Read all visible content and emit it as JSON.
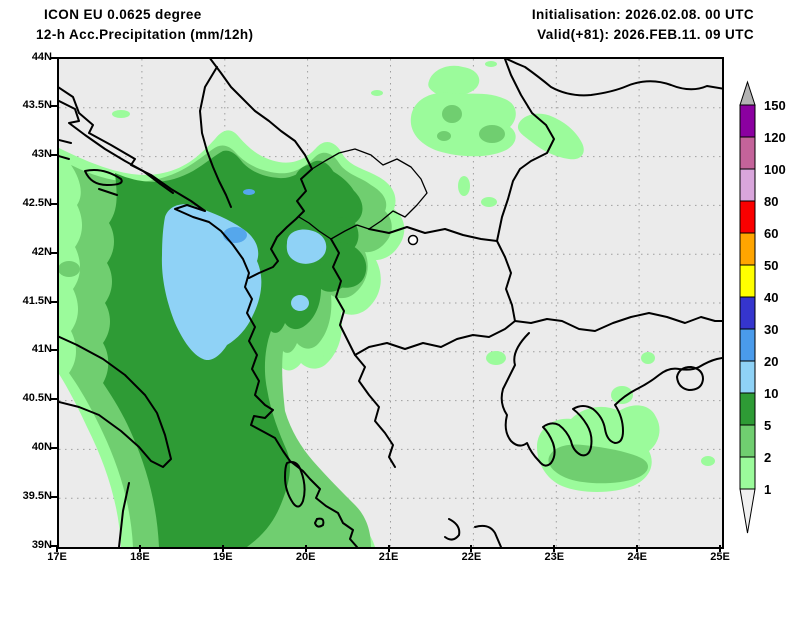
{
  "header": {
    "model": "ICON EU 0.0625 degree",
    "product": "12-h Acc.Precipitation (mm/12h)",
    "initialisation": "Initialisation: 2026.02.08. 00 UTC",
    "valid": "Valid(+81): 2026.FEB.11. 09 UTC"
  },
  "axes": {
    "lat_ticks": [
      "44N",
      "43.5N",
      "43N",
      "42.5N",
      "42N",
      "41.5N",
      "41N",
      "40.5N",
      "40N",
      "39.5N",
      "39N"
    ],
    "lon_ticks": [
      "17E",
      "18E",
      "19E",
      "20E",
      "21E",
      "22E",
      "23E",
      "24E",
      "25E"
    ]
  },
  "legend": {
    "units": "mm/12h",
    "overflow_arrow_color": "#B3B3B3",
    "underflow_triangle_color": "#F0F0F0",
    "segments": [
      {
        "top_label": "150",
        "color": "#8B00A0"
      },
      {
        "top_label": "120",
        "color": "#C4639A"
      },
      {
        "top_label": "100",
        "color": "#D9A6DC"
      },
      {
        "top_label": "80",
        "color": "#FA0000"
      },
      {
        "top_label": "60",
        "color": "#FFA500"
      },
      {
        "top_label": "50",
        "color": "#FFFF00"
      },
      {
        "top_label": "40",
        "color": "#3535CD"
      },
      {
        "top_label": "30",
        "color": "#4A9BEB"
      },
      {
        "top_label": "20",
        "color": "#8FD2F6"
      },
      {
        "top_label": "10",
        "color": "#2E9B35"
      },
      {
        "top_label": "5",
        "color": "#70CE70"
      },
      {
        "top_label": "2",
        "color": "#9BFB9B"
      },
      {
        "top_label": "1",
        "color": "#F0F0F0"
      }
    ]
  },
  "map_colors": {
    "background": "#EBEBEB",
    "grid": "#9E9E9E",
    "coastline": "#000000",
    "precip_1_2": "#9BFB9B",
    "precip_2_5": "#70CE70",
    "precip_5_10": "#2E9B35",
    "precip_10_20": "#8FD2F6",
    "precip_20_30": "#55A7EC",
    "lake_fill": "#FFFFFF"
  },
  "map_extent": {
    "lon_min": "17E",
    "lon_max": "25E",
    "lat_min": "39N",
    "lat_max": "44N"
  }
}
